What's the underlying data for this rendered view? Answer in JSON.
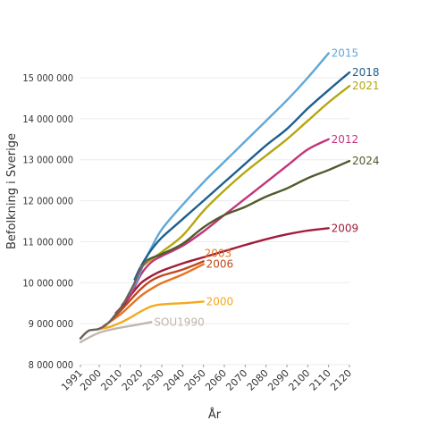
{
  "chart_data": {
    "type": "line",
    "xlabel": "År",
    "ylabel": "Befolkning i Sverige",
    "xlim": [
      1991,
      2120
    ],
    "ylim": [
      8000000,
      15800000
    ],
    "x_ticks": [
      "1991",
      "2000",
      "2010",
      "2020",
      "2030",
      "2040",
      "2050",
      "2060",
      "2070",
      "2080",
      "2090",
      "2100",
      "2110",
      "2120"
    ],
    "x_tick_values": [
      1991,
      2000,
      2010,
      2020,
      2030,
      2040,
      2050,
      2060,
      2070,
      2080,
      2090,
      2100,
      2110,
      2120
    ],
    "y_ticks": [
      "8 000 000",
      "9 000 000",
      "10 000 000",
      "11 000 000",
      "12 000 000",
      "13 000 000",
      "14 000 000",
      "15 000 000"
    ],
    "y_tick_values": [
      8000000,
      9000000,
      10000000,
      11000000,
      12000000,
      13000000,
      14000000,
      15000000
    ],
    "grid": true,
    "series": [
      {
        "name": "SOU1990",
        "color": "#c0b6ad",
        "x": [
          1991,
          2000,
          2010,
          2020,
          2025
        ],
        "y": [
          8550000,
          8780000,
          8900000,
          8990000,
          9040000
        ]
      },
      {
        "name": "2000",
        "color": "#f5a81c",
        "x": [
          1999,
          2005,
          2010,
          2015,
          2020,
          2025,
          2030,
          2040,
          2050
        ],
        "y": [
          8860000,
          8920000,
          9020000,
          9150000,
          9300000,
          9420000,
          9470000,
          9500000,
          9540000
        ]
      },
      {
        "name": "2003",
        "color": "#e8731f",
        "x": [
          2002,
          2010,
          2015,
          2020,
          2025,
          2030,
          2040,
          2050
        ],
        "y": [
          8940000,
          9220000,
          9450000,
          9680000,
          9850000,
          9990000,
          10200000,
          10450000
        ]
      },
      {
        "name": "2006",
        "color": "#bf4a1d",
        "x": [
          2005,
          2010,
          2015,
          2020,
          2025,
          2030,
          2040,
          2050
        ],
        "y": [
          9050000,
          9300000,
          9580000,
          9850000,
          10050000,
          10170000,
          10320000,
          10520000
        ]
      },
      {
        "name": "2009",
        "color": "#a01c3a",
        "x": [
          2008,
          2012,
          2016,
          2020,
          2025,
          2030,
          2040,
          2050,
          2060,
          2070,
          2080,
          2090,
          2100,
          2110
        ],
        "y": [
          9260000,
          9480000,
          9750000,
          9990000,
          10160000,
          10290000,
          10470000,
          10620000,
          10770000,
          10920000,
          11060000,
          11180000,
          11270000,
          11330000
        ]
      },
      {
        "name": "2012",
        "color": "#c1357b",
        "x": [
          2011,
          2015,
          2020,
          2025,
          2030,
          2040,
          2050,
          2060,
          2070,
          2080,
          2090,
          2100,
          2110
        ],
        "y": [
          9460000,
          9700000,
          10200000,
          10500000,
          10650000,
          10900000,
          11250000,
          11650000,
          12050000,
          12450000,
          12850000,
          13250000,
          13500000
        ]
      },
      {
        "name": "2015",
        "color": "#5fa8d8",
        "x": [
          2014,
          2018,
          2022,
          2025,
          2030,
          2040,
          2050,
          2060,
          2070,
          2080,
          2090,
          2100,
          2110
        ],
        "y": [
          9700000,
          10050000,
          10550000,
          10850000,
          11300000,
          11900000,
          12450000,
          12950000,
          13450000,
          13950000,
          14450000,
          15000000,
          15600000
        ]
      },
      {
        "name": "2018",
        "color": "#1e5f8e",
        "x": [
          2017,
          2020,
          2025,
          2030,
          2040,
          2050,
          2060,
          2070,
          2080,
          2090,
          2100,
          2110,
          2120
        ],
        "y": [
          10080000,
          10400000,
          10800000,
          11100000,
          11550000,
          12000000,
          12450000,
          12900000,
          13350000,
          13750000,
          14250000,
          14700000,
          15130000
        ]
      },
      {
        "name": "2021",
        "color": "#b5a70f",
        "x": [
          2020,
          2025,
          2030,
          2040,
          2050,
          2060,
          2070,
          2080,
          2090,
          2100,
          2110,
          2120
        ],
        "y": [
          10380000,
          10570000,
          10750000,
          11150000,
          11750000,
          12250000,
          12700000,
          13100000,
          13500000,
          13950000,
          14400000,
          14800000
        ]
      },
      {
        "name": "2024",
        "color": "#4f5b2c",
        "x": [
          2023,
          2025,
          2030,
          2040,
          2050,
          2060,
          2070,
          2080,
          2090,
          2100,
          2110,
          2120
        ],
        "y": [
          10550000,
          10600000,
          10700000,
          10950000,
          11350000,
          11650000,
          11850000,
          12100000,
          12300000,
          12550000,
          12750000,
          12970000
        ]
      },
      {
        "name": "",
        "color": "#6b615b",
        "width": 4,
        "x": [
          1991,
          1993,
          1995,
          1997,
          1999,
          2001,
          2003,
          2005,
          2007,
          2009,
          2011,
          2013,
          2015,
          2017,
          2019,
          2021,
          2023
        ],
        "y": [
          8640000,
          8750000,
          8830000,
          8850000,
          8860000,
          8900000,
          8960000,
          9050000,
          9170000,
          9300000,
          9440000,
          9610000,
          9800000,
          10000000,
          10250000,
          10420000,
          10550000
        ]
      }
    ],
    "labels": [
      {
        "text": "2015",
        "series": "2015"
      },
      {
        "text": "2018",
        "series": "2018"
      },
      {
        "text": "2021",
        "series": "2021"
      },
      {
        "text": "2012",
        "series": "2012"
      },
      {
        "text": "2024",
        "series": "2024"
      },
      {
        "text": "2009",
        "series": "2009"
      },
      {
        "text": "2003",
        "series": "2003"
      },
      {
        "text": "2006",
        "series": "2006"
      },
      {
        "text": "2000",
        "series": "2000"
      },
      {
        "text": "SOU1990",
        "series": "SOU1990"
      }
    ]
  }
}
